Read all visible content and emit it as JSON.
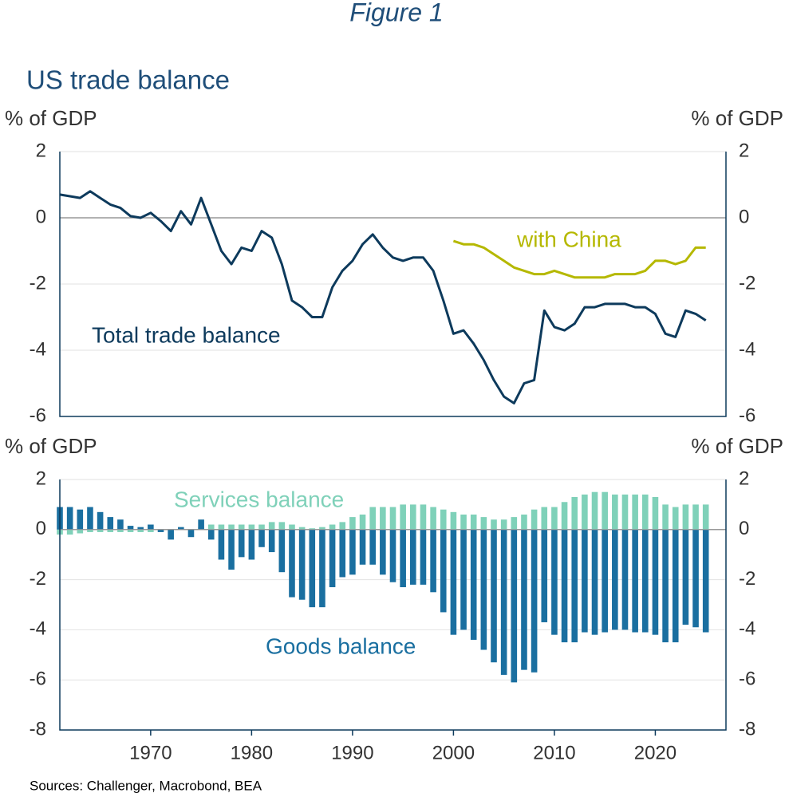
{
  "figure_title": "Figure 1",
  "source": "Sources: Challenger, Macrobond, BEA",
  "chart_data": [
    {
      "type": "line",
      "title": "US trade balance",
      "ylabel": "% of GDP",
      "y2label": "% of GDP",
      "xlim": [
        1961,
        2027
      ],
      "ylim": [
        -6,
        2
      ],
      "yticks": [
        -6,
        -4,
        -2,
        0,
        2
      ],
      "y2lim": [
        -6,
        2
      ],
      "y2ticks": [
        -6,
        -4,
        -2,
        0,
        2
      ],
      "grid": true,
      "series": [
        {
          "name": "Total trade balance",
          "color": "#0d3a5c",
          "x": [
            1961,
            1962,
            1963,
            1964,
            1965,
            1966,
            1967,
            1968,
            1969,
            1970,
            1971,
            1972,
            1973,
            1974,
            1975,
            1976,
            1977,
            1978,
            1979,
            1980,
            1981,
            1982,
            1983,
            1984,
            1985,
            1986,
            1987,
            1988,
            1989,
            1990,
            1991,
            1992,
            1993,
            1994,
            1995,
            1996,
            1997,
            1998,
            1999,
            2000,
            2001,
            2002,
            2003,
            2004,
            2005,
            2006,
            2007,
            2008,
            2009,
            2010,
            2011,
            2012,
            2013,
            2014,
            2015,
            2016,
            2017,
            2018,
            2019,
            2020,
            2021,
            2022,
            2023,
            2024,
            2025
          ],
          "values": [
            0.7,
            0.65,
            0.6,
            0.8,
            0.6,
            0.4,
            0.3,
            0.05,
            0.0,
            0.15,
            -0.1,
            -0.4,
            0.2,
            -0.2,
            0.6,
            -0.2,
            -1.0,
            -1.4,
            -0.9,
            -1.0,
            -0.4,
            -0.6,
            -1.4,
            -2.5,
            -2.7,
            -3.0,
            -3.0,
            -2.1,
            -1.6,
            -1.3,
            -0.8,
            -0.5,
            -0.9,
            -1.2,
            -1.3,
            -1.2,
            -1.2,
            -1.6,
            -2.5,
            -3.5,
            -3.4,
            -3.8,
            -4.3,
            -4.9,
            -5.4,
            -5.6,
            -5.0,
            -4.9,
            -2.8,
            -3.3,
            -3.4,
            -3.2,
            -2.7,
            -2.7,
            -2.6,
            -2.6,
            -2.6,
            -2.7,
            -2.7,
            -2.9,
            -3.5,
            -3.6,
            -2.8,
            -2.9,
            -3.1
          ]
        },
        {
          "name": "with China",
          "color": "#b5b800",
          "x": [
            2000,
            2001,
            2002,
            2003,
            2004,
            2005,
            2006,
            2007,
            2008,
            2009,
            2010,
            2011,
            2012,
            2013,
            2014,
            2015,
            2016,
            2017,
            2018,
            2019,
            2020,
            2021,
            2022,
            2023,
            2024,
            2025
          ],
          "values": [
            -0.7,
            -0.8,
            -0.8,
            -0.9,
            -1.1,
            -1.3,
            -1.5,
            -1.6,
            -1.7,
            -1.7,
            -1.6,
            -1.7,
            -1.8,
            -1.8,
            -1.8,
            -1.8,
            -1.7,
            -1.7,
            -1.7,
            -1.6,
            -1.3,
            -1.3,
            -1.4,
            -1.3,
            -0.9,
            -0.9
          ]
        }
      ]
    },
    {
      "type": "bar",
      "ylabel": "% of GDP",
      "y2label": "% of GDP",
      "xlim": [
        1961,
        2027
      ],
      "xticks": [
        1970,
        1980,
        1990,
        2000,
        2010,
        2020
      ],
      "ylim": [
        -8,
        2
      ],
      "yticks": [
        -8,
        -6,
        -4,
        -2,
        0,
        2
      ],
      "y2lim": [
        -8,
        2
      ],
      "y2ticks": [
        -8,
        -6,
        -4,
        -2,
        0,
        2
      ],
      "grid": true,
      "x": [
        1961,
        1962,
        1963,
        1964,
        1965,
        1966,
        1967,
        1968,
        1969,
        1970,
        1971,
        1972,
        1973,
        1974,
        1975,
        1976,
        1977,
        1978,
        1979,
        1980,
        1981,
        1982,
        1983,
        1984,
        1985,
        1986,
        1987,
        1988,
        1989,
        1990,
        1991,
        1992,
        1993,
        1994,
        1995,
        1996,
        1997,
        1998,
        1999,
        2000,
        2001,
        2002,
        2003,
        2004,
        2005,
        2006,
        2007,
        2008,
        2009,
        2010,
        2011,
        2012,
        2013,
        2014,
        2015,
        2016,
        2017,
        2018,
        2019,
        2020,
        2021,
        2022,
        2023,
        2024,
        2025
      ],
      "series": [
        {
          "name": "Services balance",
          "color": "#7fd1b9",
          "values": [
            -0.2,
            -0.2,
            -0.15,
            -0.1,
            -0.1,
            -0.1,
            -0.1,
            -0.1,
            -0.1,
            -0.1,
            0,
            0,
            0,
            0,
            0.1,
            0.2,
            0.2,
            0.2,
            0.2,
            0.2,
            0.2,
            0.3,
            0.3,
            0.2,
            0.1,
            0.05,
            0.1,
            0.2,
            0.3,
            0.5,
            0.6,
            0.9,
            0.9,
            0.9,
            1.0,
            1.0,
            1.0,
            0.9,
            0.8,
            0.7,
            0.6,
            0.6,
            0.5,
            0.4,
            0.4,
            0.5,
            0.6,
            0.8,
            0.9,
            0.9,
            1.1,
            1.3,
            1.4,
            1.5,
            1.5,
            1.4,
            1.4,
            1.4,
            1.4,
            1.3,
            1.0,
            0.9,
            1.0,
            1.0,
            1.0
          ]
        },
        {
          "name": "Goods balance",
          "color": "#1a6fa0",
          "values": [
            0.9,
            0.9,
            0.8,
            0.9,
            0.7,
            0.5,
            0.4,
            0.15,
            0.1,
            0.2,
            -0.1,
            -0.4,
            0.1,
            -0.3,
            0.4,
            -0.4,
            -1.2,
            -1.6,
            -1.1,
            -1.2,
            -0.7,
            -0.9,
            -1.7,
            -2.7,
            -2.8,
            -3.1,
            -3.1,
            -2.3,
            -1.9,
            -1.8,
            -1.4,
            -1.4,
            -1.8,
            -2.1,
            -2.3,
            -2.2,
            -2.2,
            -2.5,
            -3.3,
            -4.2,
            -4.0,
            -4.4,
            -4.8,
            -5.3,
            -5.8,
            -6.1,
            -5.6,
            -5.7,
            -3.7,
            -4.2,
            -4.5,
            -4.5,
            -4.1,
            -4.2,
            -4.1,
            -4.0,
            -4.0,
            -4.1,
            -4.1,
            -4.2,
            -4.5,
            -4.5,
            -3.8,
            -3.9,
            -4.1
          ]
        }
      ]
    }
  ]
}
